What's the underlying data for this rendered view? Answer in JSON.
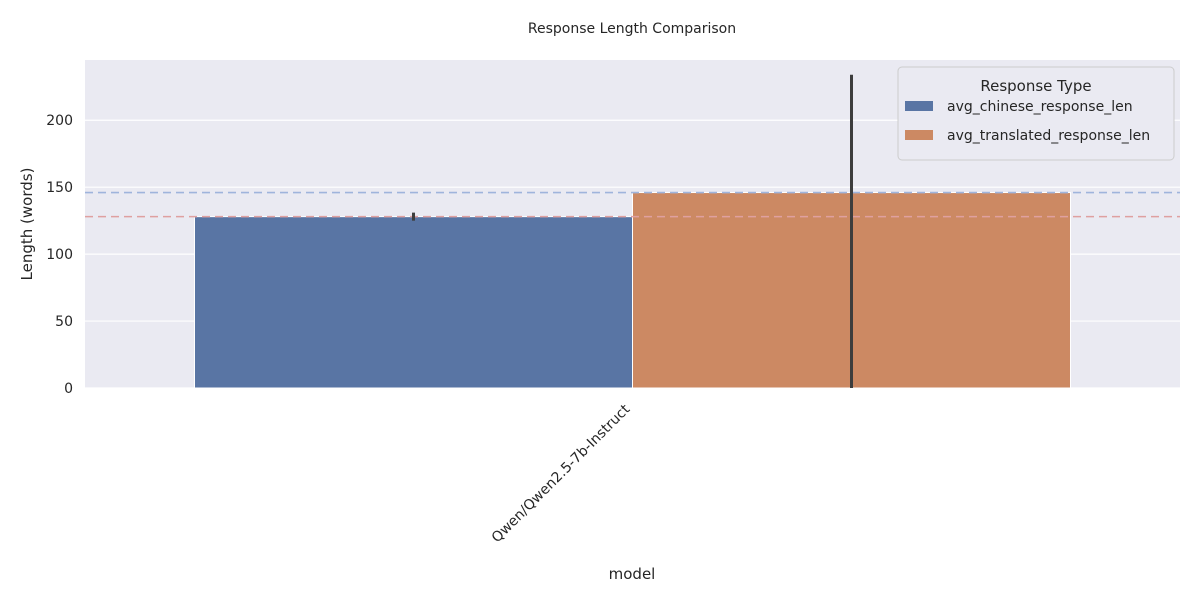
{
  "chart_data": {
    "type": "bar",
    "title": "Response Length Comparison",
    "xlabel": "model",
    "ylabel": "Length (words)",
    "categories": [
      "Qwen/Qwen2.5-7b-Instruct"
    ],
    "ylim": [
      0,
      245
    ],
    "yticks": [
      0,
      50,
      100,
      150,
      200
    ],
    "grid": true,
    "legend": {
      "title": "Response Type",
      "placement": "top-right"
    },
    "series": [
      {
        "name": "avg_chinese_response_len",
        "values": [
          128
        ],
        "error": [
          125,
          131
        ],
        "color": "#5975a4"
      },
      {
        "name": "avg_translated_response_len",
        "values": [
          146
        ],
        "error": [
          0,
          234
        ],
        "color": "#cc8963"
      }
    ],
    "reference_lines": [
      {
        "value": 146,
        "color": "#9fb4dc"
      },
      {
        "value": 128,
        "color": "#dfa0a0"
      }
    ]
  }
}
